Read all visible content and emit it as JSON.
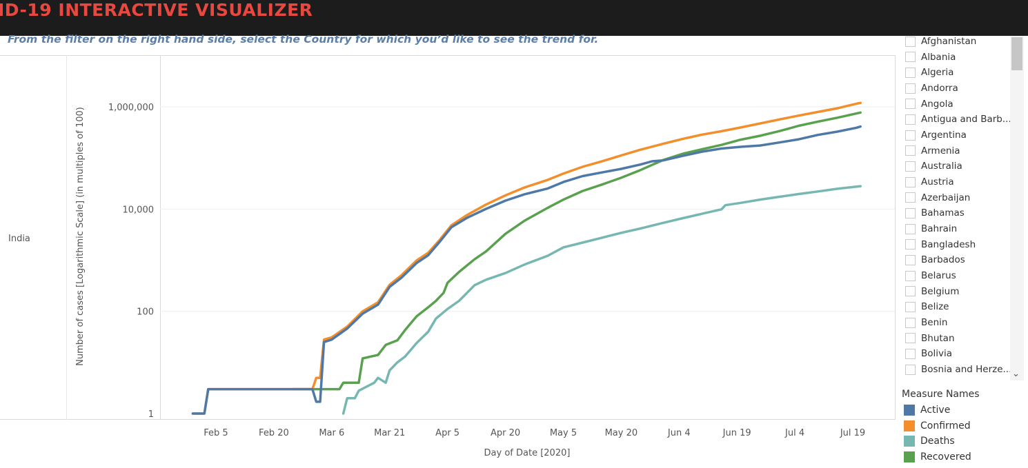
{
  "header": {
    "title": "ID-19 INTERACTIVE VISUALIZER"
  },
  "instruction": "From the filter on the right hand side, select the Country for which you’d like to see the trend for.",
  "row_label": "India",
  "filter": {
    "countries": [
      "Afghanistan",
      "Albania",
      "Algeria",
      "Andorra",
      "Angola",
      "Antigua and Barb...",
      "Argentina",
      "Armenia",
      "Australia",
      "Austria",
      "Azerbaijan",
      "Bahamas",
      "Bahrain",
      "Bangladesh",
      "Barbados",
      "Belarus",
      "Belgium",
      "Belize",
      "Benin",
      "Bhutan",
      "Bolivia",
      "Bosnia and Herze..."
    ]
  },
  "legend": {
    "title": "Measure Names",
    "items": [
      {
        "label": "Active",
        "color": "#4e79a7"
      },
      {
        "label": "Confirmed",
        "color": "#f28e2b"
      },
      {
        "label": "Deaths",
        "color": "#76b7b2"
      },
      {
        "label": "Recovered",
        "color": "#59a14f"
      }
    ]
  },
  "chart_data": {
    "type": "line",
    "ylabel": "Number of cases [Logarithmic Scale]  (in multiples of 100)",
    "xlabel": "Day of Date [2020]",
    "yscale": "log",
    "ylim": [
      1,
      1000000
    ],
    "y_ticks": [
      {
        "value": 1,
        "label": "1"
      },
      {
        "value": 100,
        "label": "100"
      },
      {
        "value": 10000,
        "label": "10,000"
      },
      {
        "value": 1000000,
        "label": "1,000,000"
      }
    ],
    "x_ticks": [
      {
        "date": "2020-02-05",
        "label": "Feb 5"
      },
      {
        "date": "2020-02-20",
        "label": "Feb 20"
      },
      {
        "date": "2020-03-06",
        "label": "Mar 6"
      },
      {
        "date": "2020-03-21",
        "label": "Mar 21"
      },
      {
        "date": "2020-04-05",
        "label": "Apr 5"
      },
      {
        "date": "2020-04-20",
        "label": "Apr 20"
      },
      {
        "date": "2020-05-05",
        "label": "May 5"
      },
      {
        "date": "2020-05-20",
        "label": "May 20"
      },
      {
        "date": "2020-06-04",
        "label": "Jun 4"
      },
      {
        "date": "2020-06-19",
        "label": "Jun 19"
      },
      {
        "date": "2020-07-04",
        "label": "Jul 4"
      },
      {
        "date": "2020-07-19",
        "label": "Jul 19"
      }
    ],
    "series": [
      {
        "name": "Confirmed",
        "color": "#f28e2b",
        "points": [
          [
            "2020-01-30",
            1
          ],
          [
            "2020-02-02",
            1
          ],
          [
            "2020-02-03",
            3
          ],
          [
            "2020-02-25",
            3
          ],
          [
            "2020-03-01",
            3
          ],
          [
            "2020-03-02",
            5
          ],
          [
            "2020-03-03",
            5
          ],
          [
            "2020-03-04",
            28
          ],
          [
            "2020-03-06",
            31
          ],
          [
            "2020-03-10",
            50
          ],
          [
            "2020-03-14",
            100
          ],
          [
            "2020-03-18",
            150
          ],
          [
            "2020-03-21",
            330
          ],
          [
            "2020-03-24",
            500
          ],
          [
            "2020-03-28",
            990
          ],
          [
            "2020-03-31",
            1400
          ],
          [
            "2020-04-03",
            2500
          ],
          [
            "2020-04-06",
            4800
          ],
          [
            "2020-04-10",
            7600
          ],
          [
            "2020-04-15",
            12300
          ],
          [
            "2020-04-20",
            18500
          ],
          [
            "2020-04-25",
            26500
          ],
          [
            "2020-05-01",
            37300
          ],
          [
            "2020-05-05",
            49400
          ],
          [
            "2020-05-10",
            67200
          ],
          [
            "2020-05-15",
            85800
          ],
          [
            "2020-05-20",
            112000
          ],
          [
            "2020-05-25",
            144900
          ],
          [
            "2020-05-31",
            190500
          ],
          [
            "2020-06-05",
            236700
          ],
          [
            "2020-06-10",
            286600
          ],
          [
            "2020-06-15",
            333000
          ],
          [
            "2020-06-20",
            395000
          ],
          [
            "2020-06-25",
            473000
          ],
          [
            "2020-06-30",
            566800
          ],
          [
            "2020-07-05",
            673200
          ],
          [
            "2020-07-10",
            793800
          ],
          [
            "2020-07-15",
            936200
          ],
          [
            "2020-07-20",
            1155000
          ],
          [
            "2020-07-21",
            1193000
          ]
        ]
      },
      {
        "name": "Active",
        "color": "#4e79a7",
        "points": [
          [
            "2020-01-30",
            1
          ],
          [
            "2020-02-02",
            1
          ],
          [
            "2020-02-03",
            3
          ],
          [
            "2020-02-20",
            3
          ],
          [
            "2020-03-01",
            3
          ],
          [
            "2020-03-02",
            1.7
          ],
          [
            "2020-03-03",
            1.7
          ],
          [
            "2020-03-04",
            25
          ],
          [
            "2020-03-06",
            28
          ],
          [
            "2020-03-10",
            46
          ],
          [
            "2020-03-14",
            90
          ],
          [
            "2020-03-18",
            135
          ],
          [
            "2020-03-21",
            300
          ],
          [
            "2020-03-24",
            450
          ],
          [
            "2020-03-28",
            880
          ],
          [
            "2020-03-31",
            1250
          ],
          [
            "2020-04-03",
            2300
          ],
          [
            "2020-04-06",
            4400
          ],
          [
            "2020-04-10",
            6700
          ],
          [
            "2020-04-15",
            10100
          ],
          [
            "2020-04-20",
            14600
          ],
          [
            "2020-04-25",
            19500
          ],
          [
            "2020-05-01",
            25300
          ],
          [
            "2020-05-05",
            33800
          ],
          [
            "2020-05-10",
            44200
          ],
          [
            "2020-05-15",
            52000
          ],
          [
            "2020-05-20",
            61200
          ],
          [
            "2020-05-25",
            74300
          ],
          [
            "2020-05-28",
            86000
          ],
          [
            "2020-05-31",
            90000
          ],
          [
            "2020-06-05",
            110000
          ],
          [
            "2020-06-10",
            133000
          ],
          [
            "2020-06-15",
            153000
          ],
          [
            "2020-06-20",
            165000
          ],
          [
            "2020-06-25",
            175000
          ],
          [
            "2020-06-30",
            201000
          ],
          [
            "2020-07-05",
            232000
          ],
          [
            "2020-07-10",
            283000
          ],
          [
            "2020-07-15",
            327000
          ],
          [
            "2020-07-20",
            390000
          ],
          [
            "2020-07-21",
            411000
          ]
        ]
      },
      {
        "name": "Recovered",
        "color": "#59a14f",
        "points": [
          [
            "2020-02-25",
            3
          ],
          [
            "2020-03-04",
            3
          ],
          [
            "2020-03-08",
            3
          ],
          [
            "2020-03-09",
            4
          ],
          [
            "2020-03-13",
            4
          ],
          [
            "2020-03-14",
            12
          ],
          [
            "2020-03-16",
            13
          ],
          [
            "2020-03-18",
            14
          ],
          [
            "2020-03-20",
            22
          ],
          [
            "2020-03-23",
            27
          ],
          [
            "2020-03-25",
            43
          ],
          [
            "2020-03-28",
            80
          ],
          [
            "2020-03-31",
            120
          ],
          [
            "2020-04-02",
            160
          ],
          [
            "2020-04-04",
            230
          ],
          [
            "2020-04-05",
            360
          ],
          [
            "2020-04-08",
            590
          ],
          [
            "2020-04-12",
            1040
          ],
          [
            "2020-04-15",
            1490
          ],
          [
            "2020-04-20",
            3270
          ],
          [
            "2020-04-25",
            5940
          ],
          [
            "2020-05-01",
            10630
          ],
          [
            "2020-05-05",
            15270
          ],
          [
            "2020-05-10",
            22550
          ],
          [
            "2020-05-15",
            30150
          ],
          [
            "2020-05-20",
            41000
          ],
          [
            "2020-05-25",
            58000
          ],
          [
            "2020-05-31",
            91800
          ],
          [
            "2020-06-05",
            121000
          ],
          [
            "2020-06-10",
            148000
          ],
          [
            "2020-06-15",
            180000
          ],
          [
            "2020-06-20",
            227800
          ],
          [
            "2020-06-25",
            271700
          ],
          [
            "2020-06-30",
            334800
          ],
          [
            "2020-07-05",
            426000
          ],
          [
            "2020-07-10",
            515300
          ],
          [
            "2020-07-15",
            612800
          ],
          [
            "2020-07-20",
            743000
          ],
          [
            "2020-07-21",
            772000
          ]
        ]
      },
      {
        "name": "Deaths",
        "color": "#76b7b2",
        "points": [
          [
            "2020-03-09",
            1
          ],
          [
            "2020-03-10",
            2
          ],
          [
            "2020-03-12",
            2
          ],
          [
            "2020-03-13",
            2.8
          ],
          [
            "2020-03-17",
            4
          ],
          [
            "2020-03-18",
            5
          ],
          [
            "2020-03-20",
            4
          ],
          [
            "2020-03-21",
            7
          ],
          [
            "2020-03-23",
            10
          ],
          [
            "2020-03-25",
            13
          ],
          [
            "2020-03-28",
            24
          ],
          [
            "2020-03-31",
            40
          ],
          [
            "2020-04-02",
            72
          ],
          [
            "2020-04-05",
            111
          ],
          [
            "2020-04-08",
            160
          ],
          [
            "2020-04-12",
            324
          ],
          [
            "2020-04-15",
            415
          ],
          [
            "2020-04-20",
            559
          ],
          [
            "2020-04-25",
            824
          ],
          [
            "2020-05-01",
            1223
          ],
          [
            "2020-05-05",
            1783
          ],
          [
            "2020-05-10",
            2206
          ],
          [
            "2020-05-15",
            2752
          ],
          [
            "2020-05-20",
            3435
          ],
          [
            "2020-05-25",
            4167
          ],
          [
            "2020-05-31",
            5394
          ],
          [
            "2020-06-05",
            6642
          ],
          [
            "2020-06-10",
            8102
          ],
          [
            "2020-06-15",
            9900
          ],
          [
            "2020-06-16",
            11903
          ],
          [
            "2020-06-20",
            13254
          ],
          [
            "2020-06-25",
            15301
          ],
          [
            "2020-06-30",
            17400
          ],
          [
            "2020-07-05",
            19693
          ],
          [
            "2020-07-10",
            22123
          ],
          [
            "2020-07-15",
            24915
          ],
          [
            "2020-07-20",
            27497
          ],
          [
            "2020-07-21",
            28084
          ]
        ]
      }
    ]
  }
}
